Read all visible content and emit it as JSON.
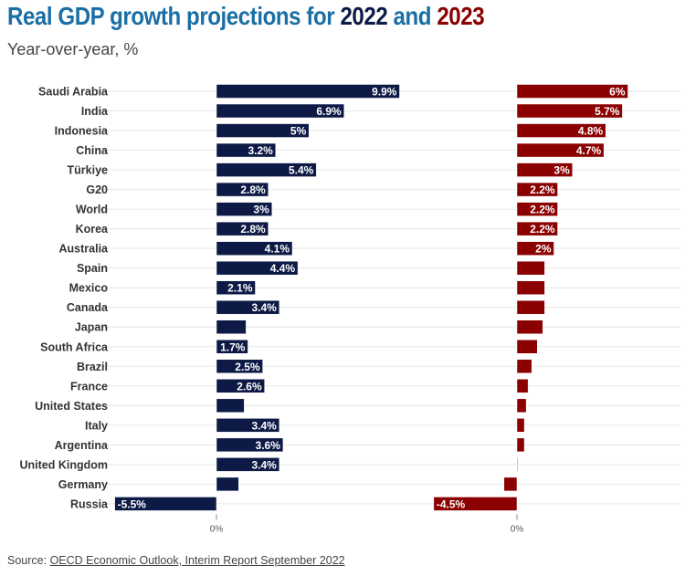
{
  "title": {
    "prefix": "Real GDP growth projections for ",
    "year1": "2022",
    "middle": " and ",
    "year2": "2023"
  },
  "subtitle": "Year-over-year, %",
  "source": {
    "label": "Source: ",
    "link": "OECD Economic Outlook, Interim Report September 2022"
  },
  "colors": {
    "title": "#1a6fa5",
    "series_2022": "#0d1a45",
    "series_2023": "#8b0000",
    "grid": "#e6e6e6"
  },
  "chart_data": {
    "type": "bar",
    "orientation": "horizontal",
    "title": "Real GDP growth projections for 2022 and 2023",
    "subtitle": "Year-over-year, %",
    "categories": [
      "Saudi Arabia",
      "India",
      "Indonesia",
      "China",
      "Türkiye",
      "G20",
      "World",
      "Korea",
      "Australia",
      "Spain",
      "Mexico",
      "Canada",
      "Japan",
      "South Africa",
      "Brazil",
      "France",
      "United States",
      "Italy",
      "Argentina",
      "United Kingdom",
      "Germany",
      "Russia"
    ],
    "series": [
      {
        "name": "2022",
        "values": [
          9.9,
          6.9,
          5,
          3.2,
          5.4,
          2.8,
          3,
          2.8,
          4.1,
          4.4,
          2.1,
          3.4,
          1.6,
          1.7,
          2.5,
          2.6,
          1.5,
          3.4,
          3.6,
          3.4,
          1.2,
          -5.5
        ],
        "labels": [
          "9.9%",
          "6.9%",
          "5%",
          "3.2%",
          "5.4%",
          "2.8%",
          "3%",
          "2.8%",
          "4.1%",
          "4.4%",
          "2.1%",
          "3.4%",
          null,
          "1.7%",
          "2.5%",
          "2.6%",
          null,
          "3.4%",
          "3.6%",
          "3.4%",
          null,
          "-5.5%"
        ]
      },
      {
        "name": "2023",
        "values": [
          6,
          5.7,
          4.8,
          4.7,
          3,
          2.2,
          2.2,
          2.2,
          2,
          1.5,
          1.5,
          1.5,
          1.4,
          1.1,
          0.8,
          0.6,
          0.5,
          0.4,
          0.4,
          0,
          -0.7,
          -4.5
        ],
        "labels": [
          "6%",
          "5.7%",
          "4.8%",
          "4.7%",
          "3%",
          "2.2%",
          "2.2%",
          "2.2%",
          "2%",
          null,
          null,
          null,
          null,
          null,
          null,
          null,
          null,
          null,
          null,
          null,
          null,
          "-4.5%"
        ]
      }
    ],
    "x_tick_label": "0%",
    "grid": true,
    "legend": "none (years colored in title)"
  }
}
